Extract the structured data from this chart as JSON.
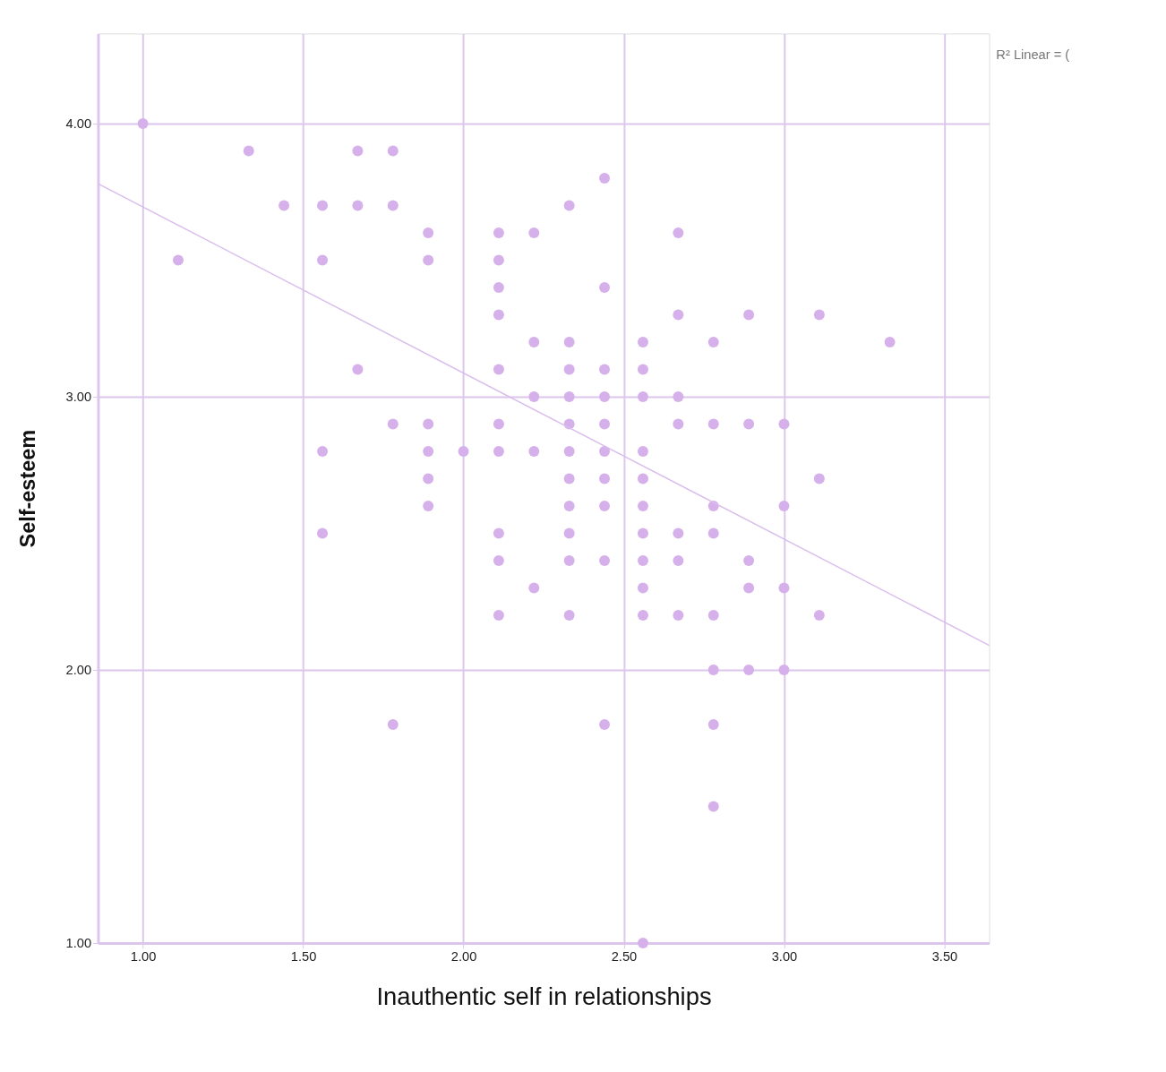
{
  "chart_data": {
    "type": "scatter",
    "xlabel": "Inauthentic self in relationships",
    "ylabel": "Self-esteem",
    "annotations": [
      "R² Linear = ("
    ],
    "xlim": [
      0.86,
      3.64
    ],
    "ylim": [
      1.0,
      4.33
    ],
    "xticks": [
      {
        "value": 1,
        "label": "1.00"
      },
      {
        "value": 1.5,
        "label": "1.50"
      },
      {
        "value": 2,
        "label": "2.00"
      },
      {
        "value": 2.5,
        "label": "2.50"
      },
      {
        "value": 3,
        "label": "3.00"
      },
      {
        "value": 3.5,
        "label": "3.50"
      }
    ],
    "yticks": [
      {
        "value": 1,
        "label": "1.00"
      },
      {
        "value": 2,
        "label": "2.00"
      },
      {
        "value": 3,
        "label": "3.00"
      },
      {
        "value": 4,
        "label": "4.00"
      }
    ],
    "grid": true,
    "series": [
      {
        "marker": "circle",
        "color": "#d6b0ea",
        "x": [
          1.0,
          1.11,
          1.33,
          1.44,
          1.56,
          1.56,
          1.56,
          1.56,
          1.67,
          1.67,
          1.67,
          1.78,
          1.78,
          1.78,
          1.78,
          1.89,
          1.89,
          1.89,
          1.89,
          1.89,
          1.89,
          2.0,
          2.11,
          2.11,
          2.11,
          2.11,
          2.11,
          2.11,
          2.11,
          2.11,
          2.11,
          2.11,
          2.22,
          2.22,
          2.22,
          2.22,
          2.22,
          2.33,
          2.33,
          2.33,
          2.33,
          2.33,
          2.33,
          2.33,
          2.33,
          2.33,
          2.33,
          2.33,
          2.44,
          2.44,
          2.44,
          2.44,
          2.44,
          2.44,
          2.44,
          2.44,
          2.44,
          2.44,
          2.56,
          2.56,
          2.56,
          2.56,
          2.56,
          2.56,
          2.56,
          2.56,
          2.56,
          2.56,
          2.56,
          2.67,
          2.67,
          2.67,
          2.67,
          2.67,
          2.67,
          2.67,
          2.78,
          2.78,
          2.78,
          2.78,
          2.78,
          2.78,
          2.78,
          2.78,
          2.89,
          2.89,
          2.89,
          2.89,
          2.89,
          3.0,
          3.0,
          3.0,
          3.0,
          3.11,
          3.11,
          3.11,
          3.33
        ],
        "values": [
          4.0,
          3.5,
          3.9,
          3.7,
          3.7,
          3.5,
          2.8,
          2.5,
          3.9,
          3.7,
          3.1,
          3.9,
          3.7,
          2.9,
          1.8,
          3.6,
          3.5,
          2.9,
          2.8,
          2.7,
          2.6,
          2.8,
          3.6,
          3.5,
          3.4,
          3.3,
          3.1,
          2.9,
          2.8,
          2.5,
          2.4,
          2.2,
          3.6,
          3.2,
          3.0,
          2.8,
          2.3,
          3.7,
          3.2,
          3.1,
          3.0,
          2.9,
          2.8,
          2.7,
          2.6,
          2.5,
          2.4,
          2.2,
          3.8,
          3.4,
          3.1,
          3.0,
          2.9,
          2.8,
          2.7,
          2.6,
          2.4,
          1.8,
          3.2,
          3.1,
          3.0,
          2.8,
          2.7,
          2.6,
          2.5,
          2.4,
          2.3,
          2.2,
          1.0,
          3.6,
          3.3,
          3.0,
          2.9,
          2.5,
          2.4,
          2.2,
          3.2,
          2.9,
          2.6,
          2.5,
          2.2,
          2.0,
          1.8,
          1.5,
          3.3,
          2.9,
          2.4,
          2.3,
          2.0,
          2.9,
          2.6,
          2.3,
          2.0,
          3.3,
          2.7,
          2.2,
          3.2
        ]
      },
      {
        "type": "line",
        "color": "#d9bdec",
        "x": [
          0.86,
          3.64
        ],
        "values": [
          3.78,
          2.09
        ]
      }
    ]
  }
}
